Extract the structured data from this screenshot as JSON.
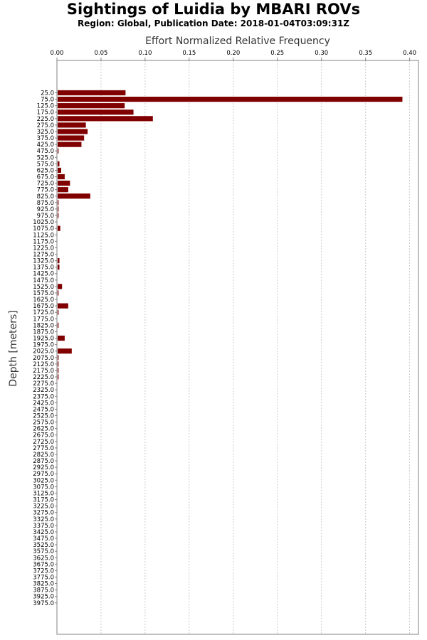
{
  "chart_data": {
    "type": "bar",
    "orientation": "horizontal",
    "title": "Sightings of Luidia by MBARI ROVs",
    "subtitle": "Region: Global, Publication Date: 2018-01-04T03:09:31Z",
    "xlabel": "Effort Normalized Relative Frequency",
    "ylabel": "Depth [meters]",
    "xlim": [
      0,
      0.41
    ],
    "x_ticks": [
      "0.00",
      "0.05",
      "0.10",
      "0.15",
      "0.20",
      "0.25",
      "0.30",
      "0.35",
      "0.40"
    ],
    "grid": "vertical-dashed",
    "bar_color": "#800000",
    "categories": [
      "25.0",
      "75.0",
      "125.0",
      "175.0",
      "225.0",
      "275.0",
      "325.0",
      "375.0",
      "425.0",
      "475.0",
      "525.0",
      "575.0",
      "625.0",
      "675.0",
      "725.0",
      "775.0",
      "825.0",
      "875.0",
      "925.0",
      "975.0",
      "1025.0",
      "1075.0",
      "1125.0",
      "1175.0",
      "1225.0",
      "1275.0",
      "1325.0",
      "1375.0",
      "1425.0",
      "1475.0",
      "1525.0",
      "1575.0",
      "1625.0",
      "1675.0",
      "1725.0",
      "1775.0",
      "1825.0",
      "1875.0",
      "1925.0",
      "1975.0",
      "2025.0",
      "2075.0",
      "2125.0",
      "2175.0",
      "2225.0",
      "2275.0",
      "2325.0",
      "2375.0",
      "2425.0",
      "2475.0",
      "2525.0",
      "2575.0",
      "2625.0",
      "2675.0",
      "2725.0",
      "2775.0",
      "2825.0",
      "2875.0",
      "2925.0",
      "2975.0",
      "3025.0",
      "3075.0",
      "3125.0",
      "3175.0",
      "3225.0",
      "3275.0",
      "3325.0",
      "3375.0",
      "3425.0",
      "3475.0",
      "3525.0",
      "3575.0",
      "3625.0",
      "3675.0",
      "3725.0",
      "3775.0",
      "3825.0",
      "3875.0",
      "3925.0",
      "3975.0"
    ],
    "values": [
      0.077,
      0.391,
      0.076,
      0.086,
      0.108,
      0.032,
      0.034,
      0.03,
      0.027,
      0.001,
      0.0,
      0.002,
      0.004,
      0.008,
      0.014,
      0.012,
      0.037,
      0.001,
      0.001,
      0.001,
      0.0,
      0.003,
      0.0,
      0.0,
      0.0,
      0.0,
      0.002,
      0.002,
      0.0,
      0.0,
      0.005,
      0.001,
      0.0,
      0.012,
      0.001,
      0.0,
      0.001,
      0.0,
      0.008,
      0.0,
      0.016,
      0.001,
      0.001,
      0.001,
      0.001,
      0,
      0,
      0,
      0,
      0,
      0,
      0,
      0,
      0,
      0,
      0,
      0,
      0,
      0,
      0,
      0,
      0,
      0,
      0,
      0,
      0,
      0,
      0,
      0,
      0,
      0,
      0,
      0,
      0,
      0,
      0,
      0,
      0,
      0,
      0
    ]
  }
}
